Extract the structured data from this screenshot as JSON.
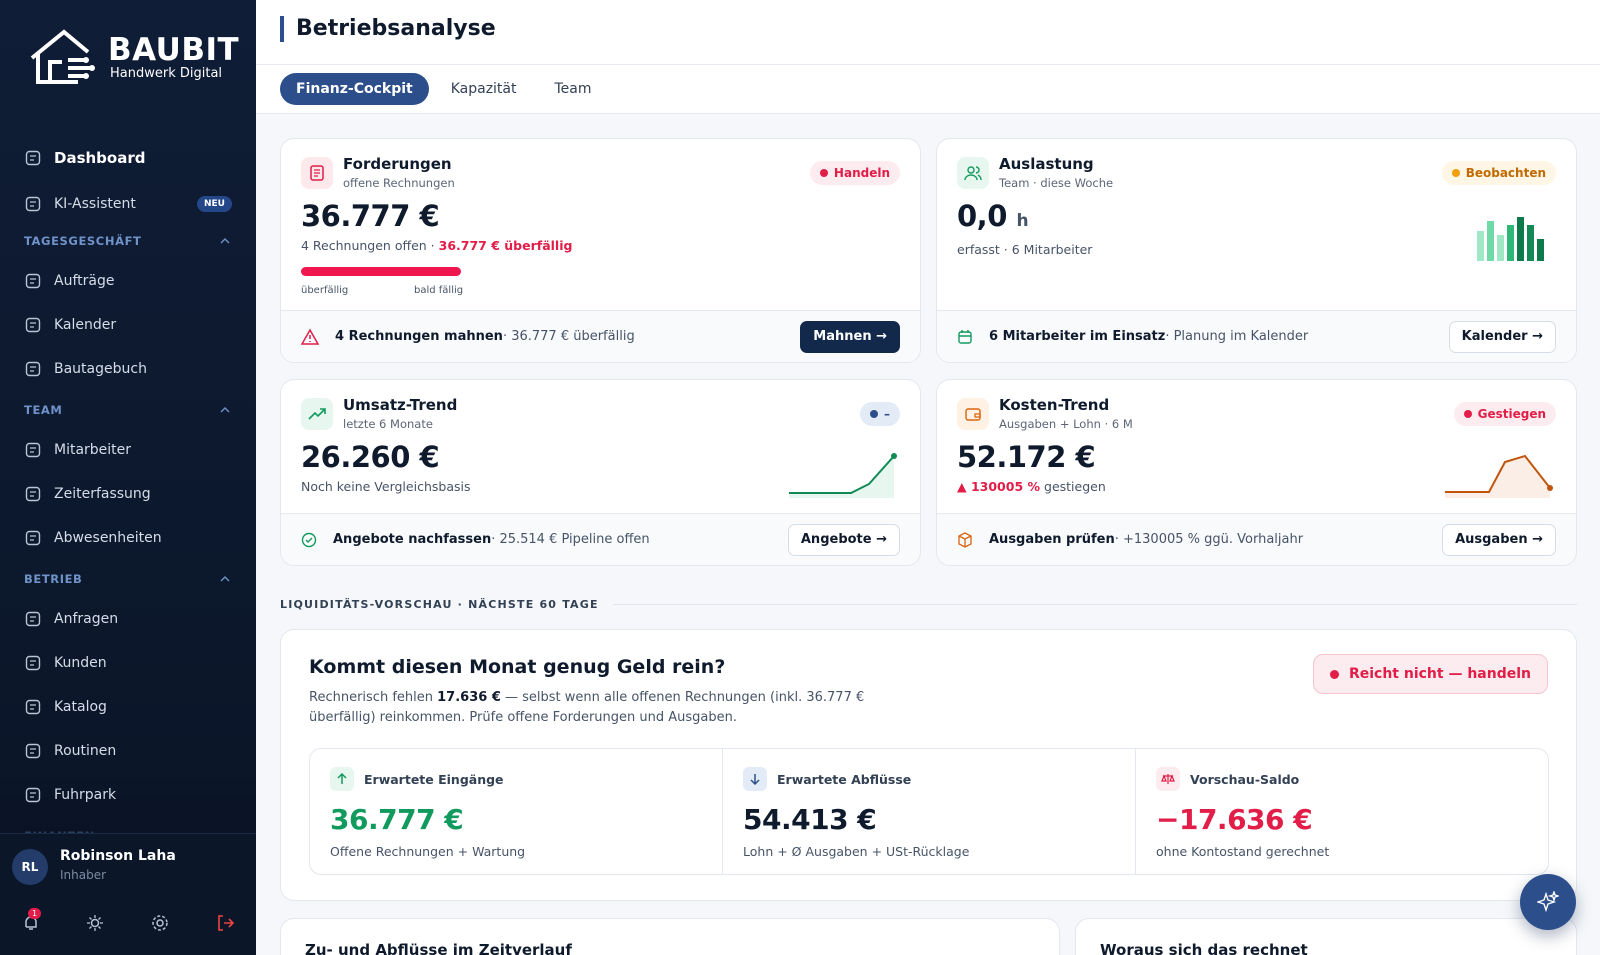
{
  "sidebar": {
    "brand": {
      "name": "BAUBIT",
      "tagline": "Handwerk Digital"
    },
    "nav": [
      {
        "label": "Dashboard"
      },
      {
        "label": "KI-Assistent",
        "badge": "NEU"
      }
    ],
    "sections": [
      {
        "title": "TAGESGESCHÄFT",
        "items": [
          "Aufträge",
          "Kalender",
          "Bautagebuch"
        ]
      },
      {
        "title": "TEAM",
        "items": [
          "Mitarbeiter",
          "Zeiterfassung",
          "Abwesenheiten"
        ]
      },
      {
        "title": "BETRIEB",
        "items": [
          "Anfragen",
          "Kunden",
          "Katalog",
          "Routinen",
          "Fuhrpark"
        ]
      },
      {
        "title": "FINANZEN",
        "items": []
      }
    ],
    "user": {
      "initials": "RL",
      "name": "Robinson Laha",
      "role": "Inhaber"
    },
    "notifications": "1"
  },
  "header": {
    "title": "Betriebsanalyse"
  },
  "tabs": [
    "Finanz-Cockpit",
    "Kapazität",
    "Team"
  ],
  "cards": [
    {
      "title": "Forderungen",
      "subtitle": "offene Rechnungen",
      "badge": "Handeln",
      "value": "36.777 €",
      "note": "4 Rechnungen offen · ",
      "note_strong": "36.777 € überfällig",
      "legend": [
        "überfällig",
        "bald fällig"
      ],
      "footer_strong": "4 Rechnungen mahnen",
      "footer_text": " · 36.777 € überfällig",
      "button": "Mahnen →"
    },
    {
      "title": "Auslastung",
      "subtitle": "Team · diese Woche",
      "badge": "Beobachten",
      "value": "0,0",
      "unit": "h",
      "note": "erfasst · 6 Mitarbeiter",
      "footer_strong": "6 Mitarbeiter im Einsatz",
      "footer_text": " · Planung im Kalender",
      "button": "Kalender →"
    },
    {
      "title": "Umsatz-Trend",
      "subtitle": "letzte 6 Monate",
      "badge": "–",
      "value": "26.260 €",
      "note": "Noch keine Vergleichsbasis",
      "footer_strong": "Angebote nachfassen",
      "footer_text": " · 25.514 € Pipeline offen",
      "button": "Angebote →"
    },
    {
      "title": "Kosten-Trend",
      "subtitle": "Ausgaben + Lohn · 6 M",
      "badge": "Gestiegen",
      "value": "52.172 €",
      "note_strong": "▲ 130005 %",
      "note": " gestiegen",
      "footer_strong": "Ausgaben prüfen",
      "footer_text": " · +130005 % ggü. Vorhaljahr",
      "button": "Ausgaben →"
    }
  ],
  "liquidity": {
    "section_label": "LIQUIDITÄTS-VORSCHAU · NÄCHSTE 60 TAGE",
    "title": "Kommt diesen Monat genug Geld rein?",
    "text_before": "Rechnerisch fehlen ",
    "text_strong": "17.636 €",
    "text_after": " — selbst wenn alle offenen Rechnungen (inkl. 36.777 € überfällig) reinkommen. Prüfe offene Forderungen und Ausgaben.",
    "badge": "Reicht nicht — handeln",
    "metrics": [
      {
        "label": "Erwartete Eingänge",
        "value": "36.777 €",
        "note": "Offene Rechnungen + Wartung"
      },
      {
        "label": "Erwartete Abflüsse",
        "value": "54.413 €",
        "note": "Lohn + Ø Ausgaben + USt-Rücklage"
      },
      {
        "label": "Vorschau-Saldo",
        "value": "−17.636 €",
        "note": "ohne Kontostand gerechnet"
      }
    ]
  },
  "bottom_cards": [
    "Zu- und Abflüsse im Zeitverlauf",
    "Woraus sich das rechnet"
  ]
}
